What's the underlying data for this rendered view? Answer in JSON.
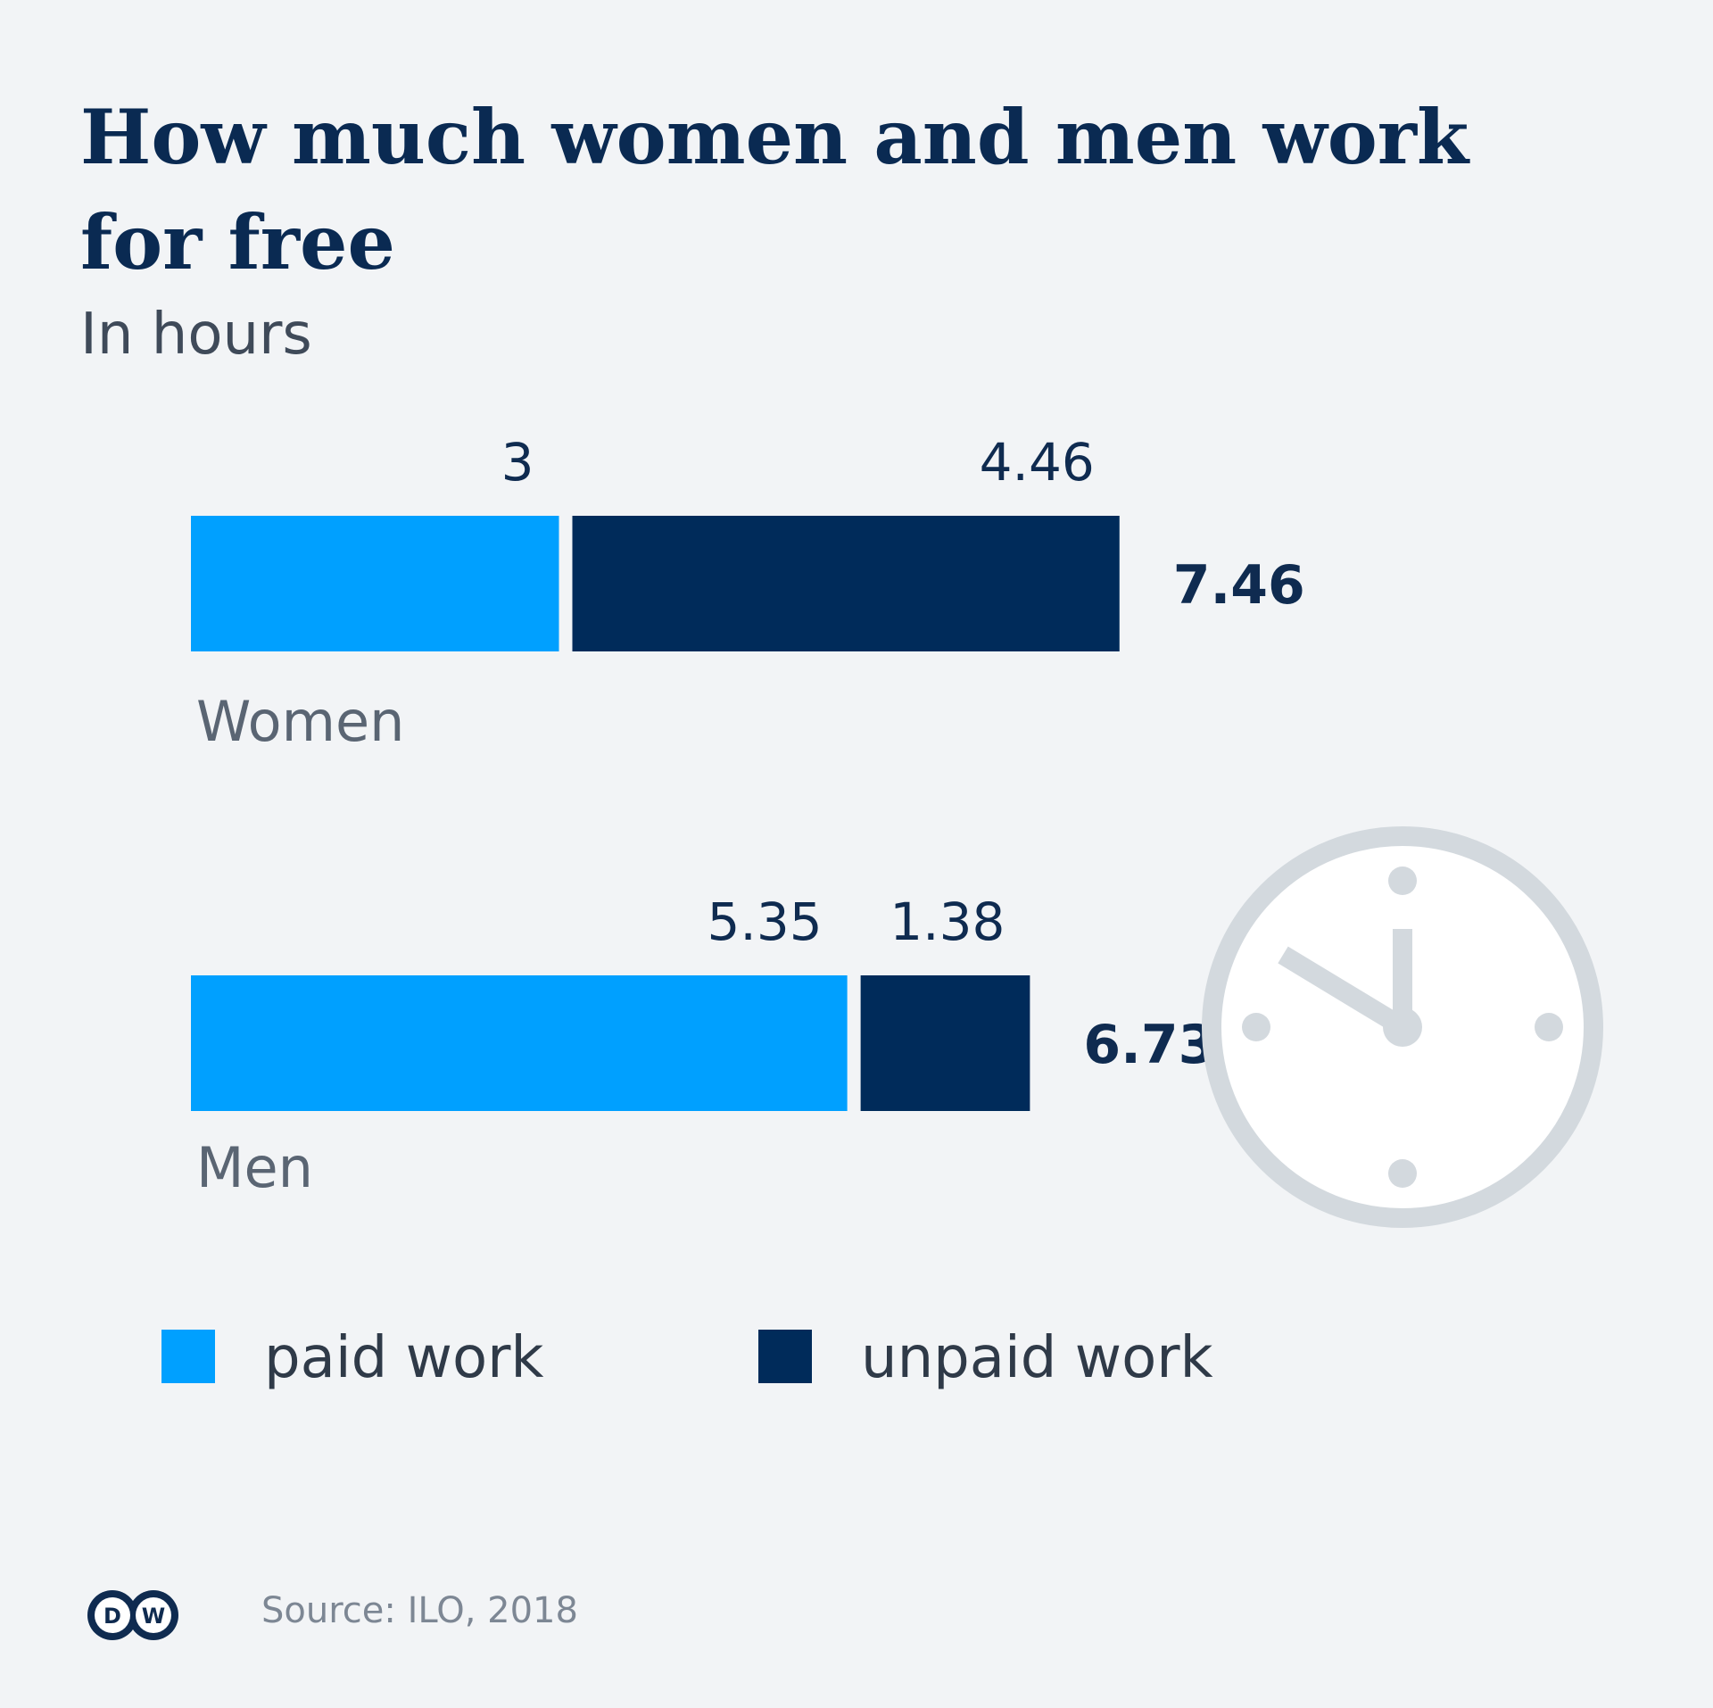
{
  "title": "How much women and men work for free",
  "subtitle": "In hours",
  "source": "Source: ILO, 2018",
  "logo": {
    "text": "DW",
    "color": "#0f2b50"
  },
  "colors": {
    "paid": "#00a0ff",
    "unpaid": "#002b5a",
    "background": "#f2f4f6",
    "clock": "#d3d9de"
  },
  "chart_data": {
    "type": "bar",
    "orientation": "horizontal",
    "stacked": true,
    "categories": [
      "Women",
      "Men"
    ],
    "series": [
      {
        "name": "paid work",
        "values": [
          3,
          5.35
        ],
        "labels": [
          "3",
          "5.35"
        ],
        "color": "#00a0ff"
      },
      {
        "name": "unpaid work",
        "values": [
          4.46,
          1.38
        ],
        "labels": [
          "4.46",
          "1.38"
        ],
        "color": "#002b5a"
      }
    ],
    "totals": [
      "7.46",
      "6.73"
    ],
    "legend": [
      "paid work",
      "unpaid work"
    ],
    "legend_position": "bottom",
    "grid": false
  }
}
